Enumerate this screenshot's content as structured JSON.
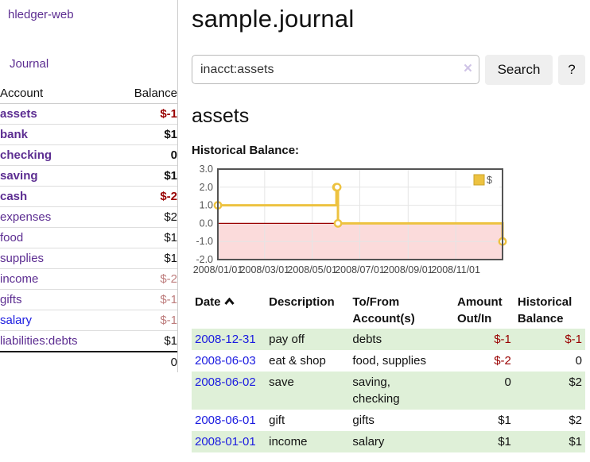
{
  "app": {
    "title": "hledger-web"
  },
  "sidebar": {
    "journal_link": "Journal",
    "accounts": {
      "header": {
        "account": "Account",
        "balance": "Balance"
      },
      "rows": [
        {
          "name": "assets",
          "balance": "$-1"
        },
        {
          "name": "bank",
          "balance": "$1"
        },
        {
          "name": "checking",
          "balance": "0"
        },
        {
          "name": "saving",
          "balance": "$1"
        },
        {
          "name": "cash",
          "balance": "$-2"
        },
        {
          "name": "expenses",
          "balance": "$2"
        },
        {
          "name": "food",
          "balance": "$1"
        },
        {
          "name": "supplies",
          "balance": "$1"
        },
        {
          "name": "income",
          "balance": "$-2"
        },
        {
          "name": "gifts",
          "balance": "$-1"
        },
        {
          "name": "salary",
          "balance": "$-1"
        },
        {
          "name": "liabilities:debts",
          "balance": "$1"
        }
      ],
      "total": "0"
    }
  },
  "main": {
    "title": "sample.journal",
    "search": {
      "value": "inacct:assets",
      "clear_icon": "×",
      "search_button": "Search",
      "help_button": "?"
    },
    "account_heading": "assets"
  },
  "chart_data": {
    "type": "line",
    "title": "Historical Balance:",
    "step": true,
    "x_domain": [
      "2008-01-01",
      "2008-12-31"
    ],
    "ylim": [
      -2,
      3
    ],
    "y_ticks": [
      {
        "v": 3,
        "label": "3.0"
      },
      {
        "v": 2,
        "label": "2.0"
      },
      {
        "v": 1,
        "label": "1.0"
      },
      {
        "v": 0,
        "label": "0.0"
      },
      {
        "v": -1,
        "label": "-1.0"
      },
      {
        "v": -2,
        "label": "-2.0"
      }
    ],
    "x_ticks": [
      {
        "date": "2008-01-01",
        "label": "2008/01/01"
      },
      {
        "date": "2008-03-01",
        "label": "2008/03/01"
      },
      {
        "date": "2008-05-01",
        "label": "2008/05/01"
      },
      {
        "date": "2008-07-01",
        "label": "2008/07/01"
      },
      {
        "date": "2008-09-01",
        "label": "2008/09/01"
      },
      {
        "date": "2008-11-01",
        "label": "2008/11/01"
      }
    ],
    "series": [
      {
        "name": "$",
        "color": "#edc240",
        "points": [
          [
            "2008-01-01",
            1
          ],
          [
            "2008-06-01",
            2
          ],
          [
            "2008-06-02",
            2
          ],
          [
            "2008-06-03",
            0
          ],
          [
            "2008-12-31",
            -1
          ]
        ]
      }
    ],
    "grid": true,
    "legend_position": "top-right",
    "zero_line_color": "#990000",
    "negative_fill": "#fbdbdb",
    "border_color": "#545454",
    "grid_color": "#e5e5e5"
  },
  "register": {
    "headers": {
      "date": "Date",
      "description": "Description",
      "accounts": "To/From Account(s)",
      "amount": "Amount Out/In",
      "balance": "Historical Balance"
    },
    "rows": [
      {
        "date": "2008-12-31",
        "description": "pay off",
        "accounts": "debts",
        "amount": "$-1",
        "balance": "$-1"
      },
      {
        "date": "2008-06-03",
        "description": "eat & shop",
        "accounts": "food, supplies",
        "amount": "$-2",
        "balance": "0"
      },
      {
        "date": "2008-06-02",
        "description": "save",
        "accounts": "saving,\nchecking",
        "amount": "0",
        "balance": "$2"
      },
      {
        "date": "2008-06-01",
        "description": "gift",
        "accounts": "gifts",
        "amount": "$1",
        "balance": "$2"
      },
      {
        "date": "2008-01-01",
        "description": "income",
        "accounts": "salary",
        "amount": "$1",
        "balance": "$1"
      }
    ]
  }
}
